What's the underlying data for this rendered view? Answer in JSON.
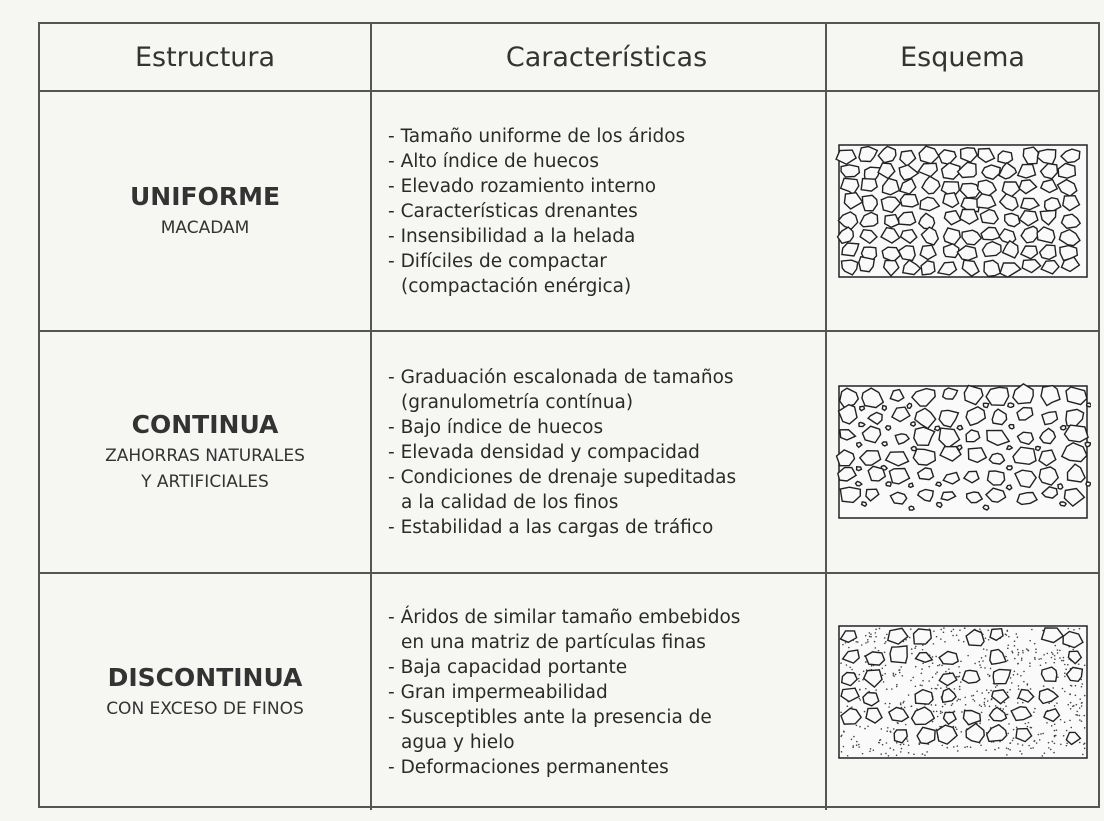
{
  "table": {
    "header": [
      "Estructura",
      "Características",
      "Esquema"
    ],
    "rows": [
      {
        "name": "UNIFORME",
        "subtitle": [
          "MACADAM"
        ],
        "items": [
          [
            "Tamaño uniforme de los áridos"
          ],
          [
            "Alto índice de huecos"
          ],
          [
            "Elevado rozamiento interno"
          ],
          [
            "Características drenantes"
          ],
          [
            "Insensibilidad a la helada"
          ],
          [
            "Difíciles de compactar",
            "(compactación enérgica)"
          ]
        ]
      },
      {
        "name": "CONTINUA",
        "subtitle": [
          "ZAHORRAS NATURALES",
          "Y ARTIFICIALES"
        ],
        "items": [
          [
            "Graduación escalonada de tamaños",
            "(granulometría contínua)"
          ],
          [
            "Bajo índice de huecos"
          ],
          [
            "Elevada densidad y compacidad"
          ],
          [
            "Condiciones de drenaje supeditadas",
            "a la calidad de los finos"
          ],
          [
            "Estabilidad a las cargas de tráfico"
          ]
        ]
      },
      {
        "name": "DISCONTINUA",
        "subtitle": [
          "CON EXCESO DE FINOS"
        ],
        "items": [
          [
            "Áridos de similar tamaño embebidos",
            "en una matriz de partículas finas"
          ],
          [
            "Baja capacidad portante"
          ],
          [
            "Gran impermeabilidad"
          ],
          [
            "Susceptibles ante la presencia de",
            "agua y hielo"
          ],
          [
            "Deformaciones permanentes"
          ]
        ]
      }
    ]
  }
}
